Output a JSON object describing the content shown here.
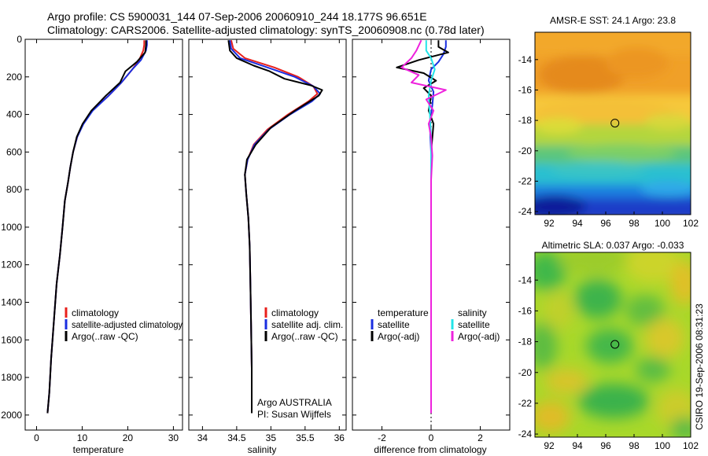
{
  "title": {
    "line1": "Argo profile: CS 5900031_144 07-Sep-2006 20060910_244 18.177S 96.651E",
    "line2": "Climatology: CARS2006. Satellite-adjusted climatology: synTS_20060908.nc (0.78d later)"
  },
  "side_label": "CSIRO 19-Sep-2006 08:31:23",
  "colors": {
    "red": "#e8201c",
    "blue": "#1a2ee0",
    "black": "#000000",
    "cyan": "#22e4e8",
    "magenta": "#ee22dd"
  },
  "chart_data": [
    {
      "id": "temperature",
      "type": "line",
      "xlabel": "temperature",
      "ylabel": "",
      "xlim": [
        -2.5,
        32
      ],
      "ylim": [
        2080,
        0
      ],
      "xticks": [
        0,
        10,
        20,
        30
      ],
      "yticks": [
        0,
        200,
        400,
        600,
        800,
        1000,
        1200,
        1400,
        1600,
        1800,
        2000
      ],
      "legend": {
        "position": "lower-right",
        "entries": [
          "climatology",
          "satellite-adjusted climatology",
          "Argo(..raw -QC)"
        ]
      },
      "series": [
        {
          "name": "climatology",
          "color": "red",
          "x": [
            23.6,
            23.6,
            23.4,
            22.5,
            21.0,
            18.6,
            15.8,
            12.2,
            10.2,
            8.9,
            8.0,
            7.4,
            6.9,
            6.2,
            5.7,
            5.1,
            4.4,
            3.8,
            3.2,
            2.8,
            2.4
          ],
          "y": [
            5,
            30,
            60,
            110,
            160,
            230,
            300,
            380,
            450,
            520,
            600,
            680,
            760,
            860,
            1000,
            1150,
            1300,
            1500,
            1700,
            1880,
            1990
          ]
        },
        {
          "name": "satellite-adjusted climatology",
          "color": "blue",
          "x": [
            24.2,
            24.2,
            24.0,
            22.9,
            21.0,
            18.6,
            15.8,
            12.3,
            10.3,
            8.9,
            8.0,
            7.4,
            6.9,
            6.2,
            5.7,
            5.1,
            4.4,
            3.8,
            3.2,
            2.8,
            2.4
          ],
          "y": [
            5,
            30,
            60,
            110,
            160,
            230,
            300,
            380,
            450,
            520,
            600,
            680,
            760,
            860,
            1000,
            1150,
            1300,
            1500,
            1700,
            1880,
            1990
          ]
        },
        {
          "name": "Argo(..raw -QC)",
          "color": "black",
          "x": [
            24.0,
            24.0,
            23.8,
            22.0,
            19.5,
            18.3,
            15.2,
            12.0,
            10.1,
            8.8,
            8.0,
            7.4,
            6.9,
            6.2,
            5.7,
            5.1,
            4.4,
            3.8,
            3.2,
            2.8,
            2.4
          ],
          "y": [
            5,
            30,
            70,
            120,
            170,
            230,
            300,
            380,
            450,
            520,
            600,
            680,
            760,
            860,
            1000,
            1150,
            1300,
            1500,
            1700,
            1880,
            1990
          ]
        }
      ]
    },
    {
      "id": "salinity",
      "type": "line",
      "xlabel": "salinity",
      "ylabel": "",
      "xlim": [
        33.8,
        36.1
      ],
      "ylim": [
        2080,
        0
      ],
      "xticks": [
        34,
        34.5,
        35,
        35.5,
        36
      ],
      "xticklabels": [
        "34",
        "34.5",
        "35",
        "35.5",
        "36"
      ],
      "yticks": [
        0,
        200,
        400,
        600,
        800,
        1000,
        1200,
        1400,
        1600,
        1800,
        2000
      ],
      "legend": {
        "position": "lower-right",
        "entries": [
          "climatology",
          "satellite adj. clim.",
          "Argo(..raw -QC)"
        ]
      },
      "annotation": [
        "Argo AUSTRALIA",
        "PI: Susan Wijffels"
      ],
      "series": [
        {
          "name": "climatology",
          "color": "red",
          "x": [
            34.42,
            34.45,
            34.62,
            35.05,
            35.4,
            35.62,
            35.68,
            35.55,
            35.25,
            34.95,
            34.75,
            34.66,
            34.62,
            34.64,
            34.67,
            34.69,
            34.7,
            34.71,
            34.72,
            34.72
          ],
          "y": [
            5,
            50,
            100,
            150,
            200,
            250,
            290,
            330,
            400,
            480,
            560,
            640,
            720,
            820,
            950,
            1100,
            1300,
            1500,
            1750,
            1990
          ]
        },
        {
          "name": "satellite adj. clim.",
          "color": "blue",
          "x": [
            34.4,
            34.42,
            34.55,
            34.95,
            35.35,
            35.62,
            35.72,
            35.6,
            35.28,
            34.97,
            34.76,
            34.66,
            34.62,
            34.64,
            34.67,
            34.69,
            34.7,
            34.71,
            34.72,
            34.72
          ],
          "y": [
            5,
            50,
            100,
            150,
            200,
            250,
            290,
            330,
            400,
            480,
            560,
            640,
            720,
            820,
            950,
            1100,
            1300,
            1500,
            1750,
            1990
          ]
        },
        {
          "name": "Argo(..raw -QC)",
          "color": "black",
          "x": [
            34.38,
            34.4,
            34.5,
            34.75,
            34.98,
            35.2,
            35.58,
            35.75,
            35.7,
            35.35,
            35.0,
            34.78,
            34.65,
            34.62,
            34.64,
            34.67,
            34.69,
            34.7,
            34.71,
            34.72,
            34.72
          ],
          "y": [
            5,
            60,
            100,
            140,
            170,
            210,
            245,
            270,
            300,
            380,
            470,
            560,
            640,
            720,
            820,
            950,
            1100,
            1300,
            1500,
            1750,
            1990
          ]
        }
      ]
    },
    {
      "id": "difference",
      "type": "line",
      "xlabel": "difference from climatology",
      "ylabel": "",
      "xlim": [
        -3.2,
        3.2
      ],
      "ylim": [
        2080,
        0
      ],
      "xticks": [
        -2,
        0,
        2
      ],
      "yticks": [
        0,
        200,
        400,
        600,
        800,
        1000,
        1200,
        1400,
        1600,
        1800,
        2000
      ],
      "legend": {
        "position": "lower-right",
        "entries": [
          "temperature",
          "satellite",
          "Argo(-adj)",
          "salinity",
          "satellite",
          "Argo(-adj)"
        ]
      },
      "series": [
        {
          "name": "satellite",
          "color": "blue",
          "x": [
            0.6,
            0.6,
            0.5,
            0.3,
            0.0,
            -0.1,
            0.1,
            0.05,
            -0.05,
            0.0,
            0.0,
            0.0,
            0.0,
            0.0
          ],
          "y": [
            5,
            40,
            80,
            120,
            160,
            220,
            280,
            350,
            450,
            600,
            800,
            1200,
            1600,
            1990
          ]
        },
        {
          "name": "Argo(-adj)",
          "color": "black",
          "x": [
            0.3,
            0.3,
            0.7,
            -0.5,
            -1.4,
            -0.3,
            0.2,
            -0.3,
            0.0,
            -0.1,
            0.1,
            0.0,
            0.0,
            0.0,
            0.0,
            0.0
          ],
          "y": [
            5,
            40,
            70,
            110,
            150,
            180,
            220,
            260,
            300,
            380,
            450,
            600,
            800,
            1200,
            1600,
            1990
          ]
        },
        {
          "name": "satellite",
          "color": "cyan",
          "x": [
            -0.2,
            -0.2,
            0.0,
            0.15,
            0.0,
            -0.1,
            -0.05,
            0.0,
            0.0,
            0.0,
            0.0,
            0.0
          ],
          "y": [
            5,
            60,
            100,
            160,
            220,
            300,
            400,
            520,
            700,
            1000,
            1500,
            1990
          ]
        },
        {
          "name": "Argo(-adj)",
          "color": "magenta",
          "x": [
            -0.4,
            -0.6,
            -0.8,
            -1.2,
            -0.5,
            -0.8,
            0.6,
            -0.2,
            0.1,
            -0.1,
            0.0,
            0.05,
            0.0,
            0.0,
            0.0,
            0.0,
            0.0
          ],
          "y": [
            5,
            60,
            100,
            150,
            190,
            230,
            270,
            320,
            380,
            450,
            520,
            620,
            750,
            900,
            1200,
            1600,
            1990
          ]
        }
      ]
    },
    {
      "id": "sst_map",
      "type": "heatmap",
      "title": "AMSR-E SST: 24.1 Argo: 23.8",
      "xlim": [
        91,
        102
      ],
      "ylim": [
        -24.2,
        -12.2
      ],
      "xticks": [
        92,
        94,
        96,
        98,
        100,
        102
      ],
      "yticks": [
        -14,
        -16,
        -18,
        -20,
        -22,
        -24
      ],
      "marker": {
        "lon": 96.651,
        "lat": -18.177
      }
    },
    {
      "id": "sla_map",
      "type": "heatmap",
      "title": "Altimetric SLA: 0.037 Argo: -0.033",
      "xlim": [
        91,
        102
      ],
      "ylim": [
        -24.2,
        -12.2
      ],
      "xticks": [
        92,
        94,
        96,
        98,
        100,
        102
      ],
      "yticks": [
        -14,
        -16,
        -18,
        -20,
        -22,
        -24
      ],
      "marker": {
        "lon": 96.651,
        "lat": -18.177
      }
    }
  ]
}
